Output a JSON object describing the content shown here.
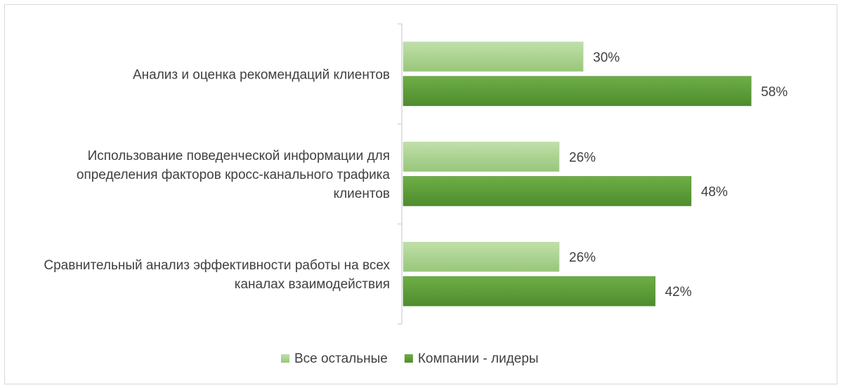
{
  "chart_data": {
    "type": "bar",
    "orientation": "horizontal",
    "categories": [
      [
        "Анализ и оценка рекомендаций клиентов"
      ],
      [
        "Использование поведенческой информации для",
        "определения факторов кросс-канального трафика",
        "клиентов"
      ],
      [
        "Сравнительный анализ эффективности работы на всех",
        "каналах взаимодействия"
      ]
    ],
    "series": [
      {
        "name": "Все остальные",
        "values": [
          30,
          26,
          26
        ],
        "labels": [
          "30%",
          "26%",
          "26%"
        ],
        "color": "#a9d18e"
      },
      {
        "name": "Компании - лидеры",
        "values": [
          58,
          48,
          42
        ],
        "labels": [
          "58%",
          "48%",
          "42%"
        ],
        "color": "#5b9a3a"
      }
    ],
    "xlim": [
      0,
      65
    ],
    "grid": false,
    "legend_position": "bottom"
  }
}
